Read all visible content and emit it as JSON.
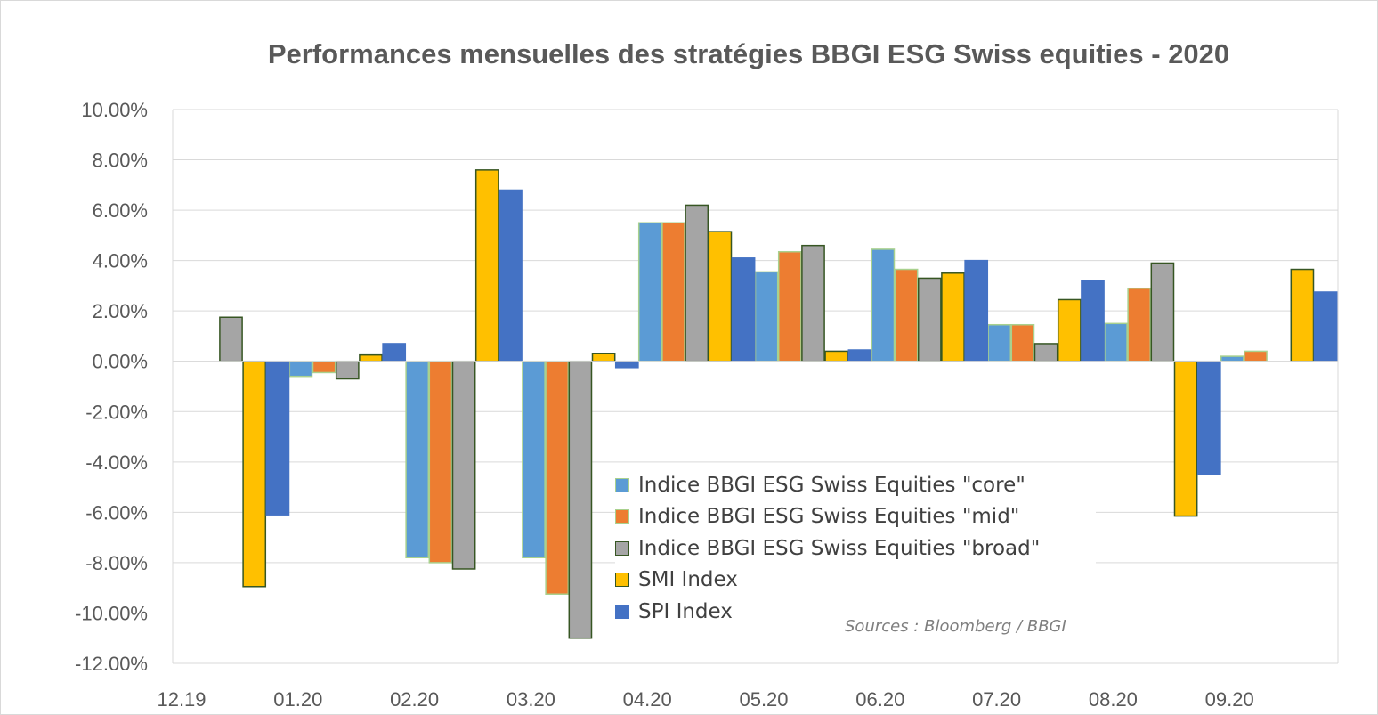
{
  "chart_data": {
    "type": "bar",
    "title": "Performances mensuelles des stratégies BBGI ESG Swiss equities - 2020",
    "xlabel": "",
    "ylabel": "",
    "categories": [
      "12.19",
      "01.20",
      "02.20",
      "03.20",
      "04.20",
      "05.20",
      "06.20",
      "07.20",
      "08.20",
      "09.20"
    ],
    "y_ticks": [
      "10.00%",
      "8.00%",
      "6.00%",
      "4.00%",
      "2.00%",
      "0.00%",
      "-2.00%",
      "-4.00%",
      "-6.00%",
      "-8.00%",
      "-10.00%",
      "-12.00%"
    ],
    "ylim": [
      -12,
      10
    ],
    "grid": true,
    "legend_position": "bottom-center inside plot",
    "series": [
      {
        "name": "Indice BBGI ESG Swiss Equities \"core\"",
        "color": "#5b9bd5",
        "border": "#a9d18e",
        "values": [
          null,
          -0.6,
          -7.8,
          -7.8,
          5.5,
          3.55,
          4.45,
          1.45,
          1.5,
          0.2
        ]
      },
      {
        "name": "Indice BBGI ESG Swiss Equities \"mid\"",
        "color": "#ed7d31",
        "border": "#a9d18e",
        "values": [
          null,
          -0.45,
          -8.0,
          -9.25,
          5.5,
          4.35,
          3.65,
          1.45,
          2.9,
          0.4
        ]
      },
      {
        "name": "Indice BBGI ESG Swiss Equities \"broad\"",
        "color": "#a5a5a5",
        "border": "#375623",
        "values": [
          1.75,
          -0.7,
          -8.25,
          -11.0,
          6.2,
          4.6,
          3.3,
          0.7,
          3.9,
          null
        ]
      },
      {
        "name": "SMI Index",
        "color": "#ffc000",
        "border": "#375623",
        "values": [
          -8.95,
          0.25,
          7.6,
          0.3,
          5.15,
          0.4,
          3.5,
          2.45,
          -6.15,
          3.65
        ]
      },
      {
        "name": "SPI Index",
        "color": "#4472c4",
        "border": "#4472c4",
        "values": [
          -6.1,
          0.7,
          6.8,
          -0.25,
          4.1,
          0.45,
          4.0,
          3.2,
          -4.5,
          2.75
        ]
      }
    ],
    "annotation": "Sources : Bloomberg / BBGI"
  }
}
